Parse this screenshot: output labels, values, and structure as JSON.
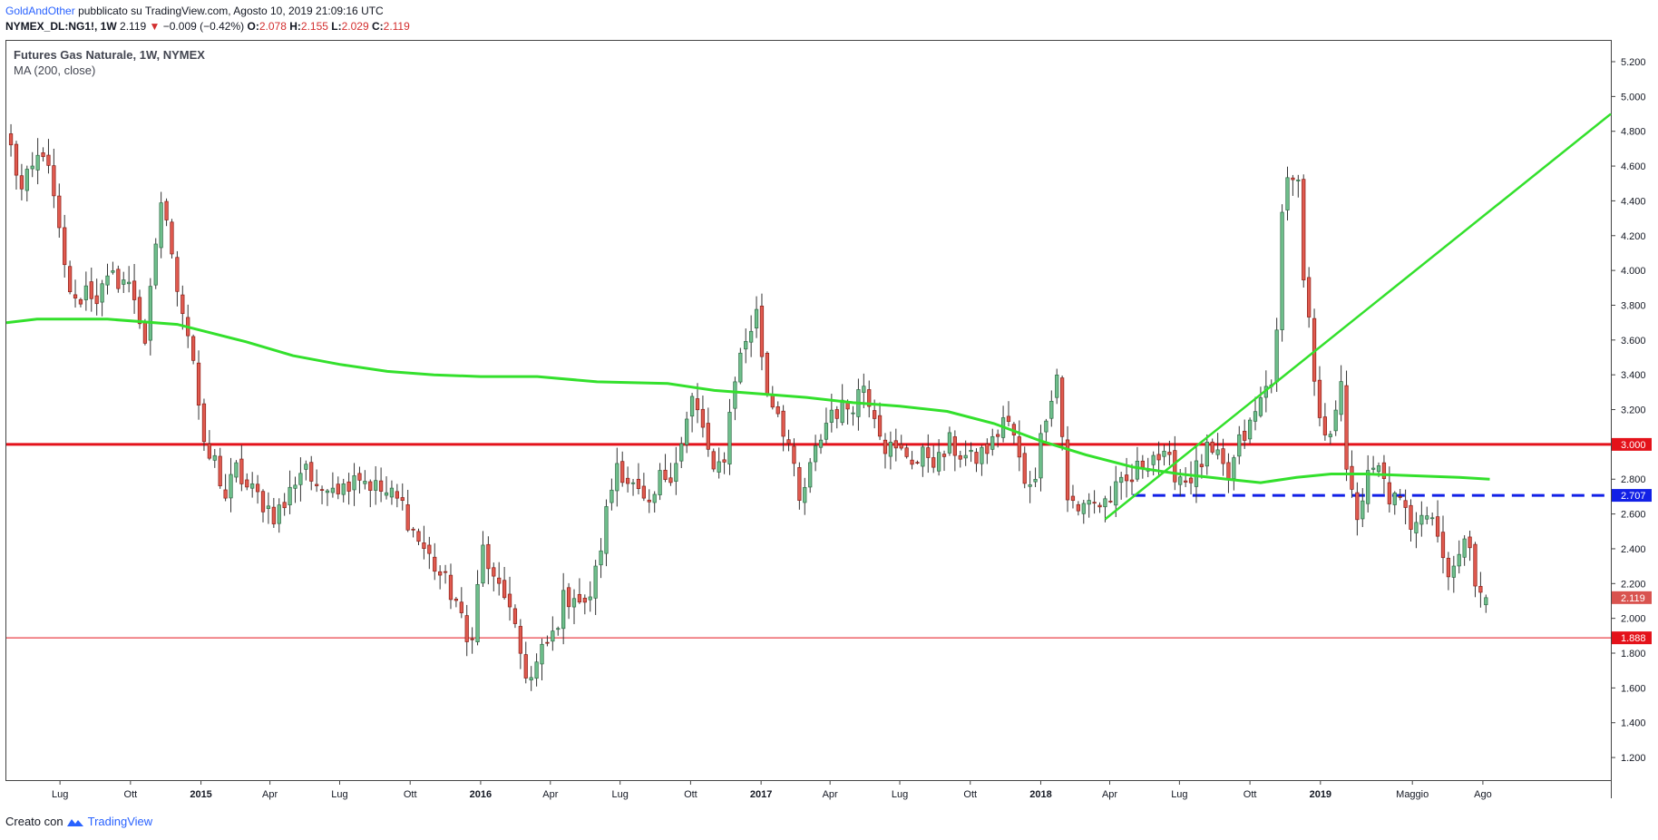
{
  "header": {
    "author": "GoldAndOther",
    "published_text": "pubblicato su TradingView.com, Agosto 10, 2019 21:09:16 UTC",
    "symbol": "NYMEX_DL:NG1!, 1W",
    "last": "2.119",
    "change": "−0.009 (−0.42%)",
    "o_label": "O:",
    "o_value": "2.078",
    "h_label": "H:",
    "h_value": "2.155",
    "l_label": "L:",
    "l_value": "2.029",
    "c_label": "C:",
    "c_value": "2.119"
  },
  "legend": {
    "title": "Futures Gas Naturale, 1W, NYMEX",
    "indicator": "MA (200, close)"
  },
  "footer": {
    "created_with": "Creato con",
    "brand": "TradingView"
  },
  "colors": {
    "up": "#6fbf8c",
    "up_border": "#2e6b45",
    "down": "#e05a4f",
    "down_border": "#8b1e17",
    "ma": "#33e02c",
    "resistance": "#e4121a",
    "support_dash": "#1220e6",
    "trendline": "#33e02c"
  },
  "chart_data": {
    "type": "candlestick",
    "timeframe": "1W",
    "y_ticks": [
      "1.200",
      "1.400",
      "1.600",
      "1.800",
      "2.000",
      "2.200",
      "2.400",
      "2.600",
      "2.800",
      "3.000",
      "3.200",
      "3.400",
      "3.600",
      "3.800",
      "4.000",
      "4.200",
      "4.400",
      "4.600",
      "4.800",
      "5.000",
      "5.200"
    ],
    "ylim": [
      1.07,
      5.32
    ],
    "x_ticks": [
      {
        "label": "Lug",
        "date": "2014-07-01"
      },
      {
        "label": "Ott",
        "date": "2014-10-01"
      },
      {
        "label": "2015",
        "date": "2015-01-01",
        "bold": true
      },
      {
        "label": "Apr",
        "date": "2015-04-01"
      },
      {
        "label": "Lug",
        "date": "2015-07-01"
      },
      {
        "label": "Ott",
        "date": "2015-10-01"
      },
      {
        "label": "2016",
        "date": "2016-01-01",
        "bold": true
      },
      {
        "label": "Apr",
        "date": "2016-04-01"
      },
      {
        "label": "Lug",
        "date": "2016-07-01"
      },
      {
        "label": "Ott",
        "date": "2016-10-01"
      },
      {
        "label": "2017",
        "date": "2017-01-01",
        "bold": true
      },
      {
        "label": "Apr",
        "date": "2017-04-01"
      },
      {
        "label": "Lug",
        "date": "2017-07-01"
      },
      {
        "label": "Ott",
        "date": "2017-10-01"
      },
      {
        "label": "2018",
        "date": "2018-01-01",
        "bold": true
      },
      {
        "label": "Apr",
        "date": "2018-04-01"
      },
      {
        "label": "Lug",
        "date": "2018-07-01"
      },
      {
        "label": "Ott",
        "date": "2018-10-01"
      },
      {
        "label": "2019",
        "date": "2019-01-01",
        "bold": true
      },
      {
        "label": "Maggio",
        "date": "2019-05-01"
      },
      {
        "label": "Ago",
        "date": "2019-08-01"
      }
    ],
    "xlim": [
      "2014-04-22",
      "2020-01-15"
    ],
    "close_anchors": [
      [
        "2014-04-28",
        4.7
      ],
      [
        "2014-05-12",
        4.45
      ],
      [
        "2014-06-09",
        4.7
      ],
      [
        "2014-06-23",
        4.4
      ],
      [
        "2014-07-07",
        4.0
      ],
      [
        "2014-07-21",
        3.8
      ],
      [
        "2014-08-04",
        3.9
      ],
      [
        "2014-08-18",
        3.85
      ],
      [
        "2014-09-08",
        3.95
      ],
      [
        "2014-09-22",
        3.95
      ],
      [
        "2014-10-06",
        3.85
      ],
      [
        "2014-10-20",
        3.6
      ],
      [
        "2014-11-03",
        4.1
      ],
      [
        "2014-11-10",
        4.4
      ],
      [
        "2014-11-17",
        4.3
      ],
      [
        "2014-11-24",
        4.05
      ],
      [
        "2014-12-08",
        3.8
      ],
      [
        "2014-12-22",
        3.5
      ],
      [
        "2015-01-05",
        2.95
      ],
      [
        "2015-01-19",
        2.9
      ],
      [
        "2015-02-02",
        2.7
      ],
      [
        "2015-02-16",
        2.85
      ],
      [
        "2015-03-02",
        2.75
      ],
      [
        "2015-03-16",
        2.7
      ],
      [
        "2015-04-06",
        2.6
      ],
      [
        "2015-04-20",
        2.65
      ],
      [
        "2015-05-04",
        2.8
      ],
      [
        "2015-05-18",
        2.9
      ],
      [
        "2015-06-01",
        2.7
      ],
      [
        "2015-06-15",
        2.8
      ],
      [
        "2015-07-06",
        2.75
      ],
      [
        "2015-07-20",
        2.85
      ],
      [
        "2015-08-03",
        2.8
      ],
      [
        "2015-08-17",
        2.75
      ],
      [
        "2015-09-07",
        2.7
      ],
      [
        "2015-09-21",
        2.65
      ],
      [
        "2015-10-05",
        2.5
      ],
      [
        "2015-10-19",
        2.4
      ],
      [
        "2015-11-02",
        2.3
      ],
      [
        "2015-11-16",
        2.2
      ],
      [
        "2015-11-30",
        2.1
      ],
      [
        "2015-12-14",
        1.85
      ],
      [
        "2015-12-21",
        1.95
      ],
      [
        "2016-01-04",
        2.4
      ],
      [
        "2016-01-18",
        2.2
      ],
      [
        "2016-02-01",
        2.15
      ],
      [
        "2016-02-15",
        1.9
      ],
      [
        "2016-02-29",
        1.7
      ],
      [
        "2016-03-07",
        1.65
      ],
      [
        "2016-03-21",
        1.8
      ],
      [
        "2016-04-04",
        1.9
      ],
      [
        "2016-04-18",
        2.1
      ],
      [
        "2016-05-02",
        2.15
      ],
      [
        "2016-05-16",
        2.05
      ],
      [
        "2016-05-30",
        2.25
      ],
      [
        "2016-06-13",
        2.6
      ],
      [
        "2016-06-27",
        2.9
      ],
      [
        "2016-07-11",
        2.8
      ],
      [
        "2016-07-25",
        2.7
      ],
      [
        "2016-08-08",
        2.6
      ],
      [
        "2016-08-22",
        2.8
      ],
      [
        "2016-09-05",
        2.85
      ],
      [
        "2016-09-19",
        3.0
      ],
      [
        "2016-10-03",
        3.25
      ],
      [
        "2016-10-17",
        3.1
      ],
      [
        "2016-10-31",
        2.8
      ],
      [
        "2016-11-14",
        2.95
      ],
      [
        "2016-11-28",
        3.4
      ],
      [
        "2016-12-12",
        3.6
      ],
      [
        "2016-12-26",
        3.75
      ],
      [
        "2017-01-09",
        3.3
      ],
      [
        "2017-01-23",
        3.2
      ],
      [
        "2017-02-06",
        3.0
      ],
      [
        "2017-02-20",
        2.65
      ],
      [
        "2017-03-06",
        2.85
      ],
      [
        "2017-03-20",
        3.05
      ],
      [
        "2017-04-03",
        3.2
      ],
      [
        "2017-04-17",
        3.2
      ],
      [
        "2017-05-01",
        3.25
      ],
      [
        "2017-05-15",
        3.35
      ],
      [
        "2017-05-29",
        3.2
      ],
      [
        "2017-06-12",
        3.0
      ],
      [
        "2017-06-26",
        2.95
      ],
      [
        "2017-07-10",
        2.95
      ],
      [
        "2017-07-24",
        2.9
      ],
      [
        "2017-08-07",
        2.95
      ],
      [
        "2017-08-21",
        2.9
      ],
      [
        "2017-09-04",
        3.0
      ],
      [
        "2017-09-18",
        2.95
      ],
      [
        "2017-10-02",
        2.9
      ],
      [
        "2017-10-16",
        2.95
      ],
      [
        "2017-10-30",
        3.0
      ],
      [
        "2017-11-13",
        3.15
      ],
      [
        "2017-11-27",
        3.05
      ],
      [
        "2017-12-11",
        2.75
      ],
      [
        "2017-12-25",
        2.85
      ],
      [
        "2018-01-08",
        3.2
      ],
      [
        "2018-01-22",
        3.4
      ],
      [
        "2018-02-05",
        2.7
      ],
      [
        "2018-02-19",
        2.6
      ],
      [
        "2018-03-05",
        2.7
      ],
      [
        "2018-03-19",
        2.65
      ],
      [
        "2018-04-02",
        2.7
      ],
      [
        "2018-04-16",
        2.75
      ],
      [
        "2018-04-30",
        2.8
      ],
      [
        "2018-05-14",
        2.9
      ],
      [
        "2018-05-28",
        2.95
      ],
      [
        "2018-06-11",
        2.9
      ],
      [
        "2018-06-25",
        2.85
      ],
      [
        "2018-07-09",
        2.8
      ],
      [
        "2018-07-23",
        2.85
      ],
      [
        "2018-08-06",
        2.95
      ],
      [
        "2018-08-20",
        2.9
      ],
      [
        "2018-09-03",
        2.8
      ],
      [
        "2018-09-17",
        3.0
      ],
      [
        "2018-10-01",
        3.1
      ],
      [
        "2018-10-15",
        3.25
      ],
      [
        "2018-10-29",
        3.4
      ],
      [
        "2018-11-05",
        3.6
      ],
      [
        "2018-11-12",
        4.3
      ],
      [
        "2018-11-19",
        4.6
      ],
      [
        "2018-11-26",
        4.5
      ],
      [
        "2018-12-03",
        4.55
      ],
      [
        "2018-12-10",
        3.9
      ],
      [
        "2018-12-17",
        3.7
      ],
      [
        "2018-12-24",
        3.3
      ],
      [
        "2019-01-07",
        3.0
      ],
      [
        "2019-01-14",
        3.1
      ],
      [
        "2019-01-28",
        3.4
      ],
      [
        "2019-02-04",
        2.8
      ],
      [
        "2019-02-18",
        2.6
      ],
      [
        "2019-03-04",
        2.8
      ],
      [
        "2019-03-18",
        2.85
      ],
      [
        "2019-04-01",
        2.7
      ],
      [
        "2019-04-15",
        2.65
      ],
      [
        "2019-04-29",
        2.55
      ],
      [
        "2019-05-13",
        2.65
      ],
      [
        "2019-05-27",
        2.6
      ],
      [
        "2019-06-10",
        2.35
      ],
      [
        "2019-06-17",
        2.3
      ],
      [
        "2019-07-01",
        2.35
      ],
      [
        "2019-07-15",
        2.45
      ],
      [
        "2019-07-22",
        2.25
      ],
      [
        "2019-08-05",
        2.119
      ]
    ],
    "ma": {
      "name": "MA (200, close)",
      "points": [
        [
          "2014-04-22",
          3.7
        ],
        [
          "2014-06-01",
          3.72
        ],
        [
          "2014-09-01",
          3.72
        ],
        [
          "2014-12-01",
          3.69
        ],
        [
          "2015-01-15",
          3.64
        ],
        [
          "2015-03-01",
          3.59
        ],
        [
          "2015-05-01",
          3.51
        ],
        [
          "2015-07-01",
          3.46
        ],
        [
          "2015-09-01",
          3.42
        ],
        [
          "2015-11-01",
          3.4
        ],
        [
          "2016-01-01",
          3.39
        ],
        [
          "2016-03-15",
          3.39
        ],
        [
          "2016-06-01",
          3.36
        ],
        [
          "2016-09-01",
          3.35
        ],
        [
          "2016-11-01",
          3.31
        ],
        [
          "2017-01-01",
          3.29
        ],
        [
          "2017-03-01",
          3.27
        ],
        [
          "2017-05-01",
          3.24
        ],
        [
          "2017-07-01",
          3.22
        ],
        [
          "2017-09-01",
          3.19
        ],
        [
          "2017-11-01",
          3.12
        ],
        [
          "2018-01-01",
          3.02
        ],
        [
          "2018-03-01",
          2.94
        ],
        [
          "2018-05-01",
          2.87
        ],
        [
          "2018-07-01",
          2.83
        ],
        [
          "2018-09-01",
          2.8
        ],
        [
          "2018-10-15",
          2.78
        ],
        [
          "2018-12-01",
          2.81
        ],
        [
          "2019-01-15",
          2.83
        ],
        [
          "2019-03-01",
          2.83
        ],
        [
          "2019-05-01",
          2.82
        ],
        [
          "2019-07-01",
          2.81
        ],
        [
          "2019-08-10",
          2.8
        ]
      ]
    },
    "levels": [
      {
        "value": 3.0,
        "label": "3.000",
        "style": "solid-thick",
        "color": "#e4121a"
      },
      {
        "value": 2.707,
        "label": "2.707",
        "style": "dashed",
        "color": "#1220e6",
        "from": "2018-05-01"
      },
      {
        "value": 1.888,
        "label": "1.888",
        "style": "solid-thin",
        "color": "#e4121a"
      }
    ],
    "trendline": {
      "from": [
        "2018-03-26",
        2.57
      ],
      "to": [
        "2020-01-15",
        4.9
      ]
    },
    "last_price": {
      "value": 2.119,
      "label": "2.119"
    }
  }
}
